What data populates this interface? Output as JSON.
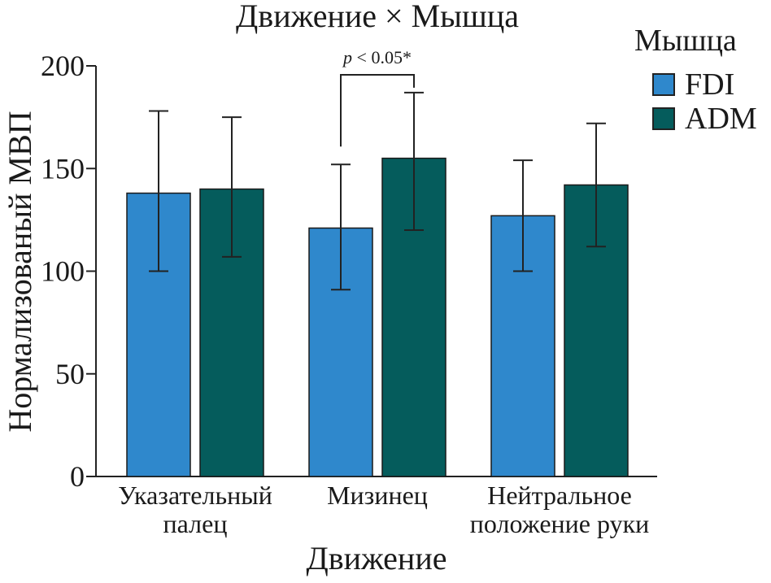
{
  "chart_data": {
    "type": "bar",
    "title": "Движение × Мышца",
    "xlabel": "Движение",
    "ylabel": "Нормализованый МВП",
    "ylim": [
      0,
      200
    ],
    "yticks": [
      0,
      50,
      100,
      150,
      200
    ],
    "categories": [
      [
        "Указательный",
        "палец"
      ],
      [
        "Мизинец"
      ],
      [
        "Нейтральное",
        "положение руки"
      ]
    ],
    "series": [
      {
        "name": "FDI",
        "color": "#2F88CC",
        "values": [
          138,
          121,
          127
        ],
        "error_low": [
          100,
          91,
          100
        ],
        "error_high": [
          178,
          152,
          154
        ]
      },
      {
        "name": "ADM",
        "color": "#055C5C",
        "values": [
          140,
          155,
          142
        ],
        "error_low": [
          107,
          120,
          112
        ],
        "error_high": [
          175,
          187,
          172
        ]
      }
    ],
    "legend": {
      "title": "Мышца",
      "placement": "top-right"
    },
    "annotation": {
      "text": "p < 0.05*",
      "category_index": 1,
      "from_series": 0,
      "to_series": 1,
      "y_bracket": 198
    },
    "grid": false
  }
}
